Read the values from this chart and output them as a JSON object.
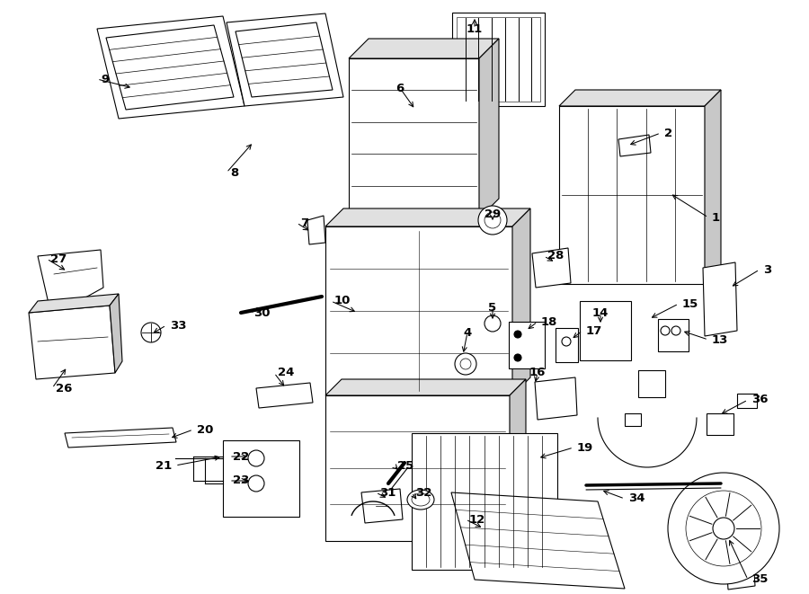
{
  "bg_color": "#ffffff",
  "lw": 0.8,
  "labels": [
    [
      "1",
      788,
      242,
      745,
      215,
      "left"
    ],
    [
      "2",
      735,
      148,
      698,
      162,
      "left"
    ],
    [
      "3",
      845,
      300,
      812,
      320,
      "left"
    ],
    [
      "4",
      520,
      370,
      515,
      395,
      "center"
    ],
    [
      "5",
      548,
      342,
      548,
      358,
      "center"
    ],
    [
      "6",
      445,
      98,
      462,
      122,
      "center"
    ],
    [
      "7",
      330,
      248,
      346,
      258,
      "left"
    ],
    [
      "8",
      252,
      192,
      282,
      158,
      "left"
    ],
    [
      "9",
      108,
      88,
      148,
      98,
      "left"
    ],
    [
      "10",
      368,
      335,
      398,
      348,
      "left"
    ],
    [
      "11",
      528,
      32,
      528,
      18,
      "center"
    ],
    [
      "12",
      518,
      578,
      538,
      588,
      "left"
    ],
    [
      "13",
      788,
      378,
      758,
      368,
      "left"
    ],
    [
      "14",
      668,
      348,
      668,
      362,
      "center"
    ],
    [
      "15",
      755,
      338,
      722,
      355,
      "left"
    ],
    [
      "16",
      598,
      415,
      595,
      428,
      "center"
    ],
    [
      "17",
      648,
      368,
      635,
      378,
      "left"
    ],
    [
      "18",
      598,
      358,
      585,
      368,
      "left"
    ],
    [
      "19",
      638,
      498,
      598,
      510,
      "left"
    ],
    [
      "20",
      215,
      478,
      188,
      488,
      "left"
    ],
    [
      "21",
      195,
      518,
      248,
      508,
      "right"
    ],
    [
      "22",
      255,
      508,
      278,
      508,
      "left"
    ],
    [
      "23",
      255,
      535,
      278,
      535,
      "left"
    ],
    [
      "24",
      305,
      415,
      318,
      432,
      "left"
    ],
    [
      "25",
      438,
      518,
      445,
      525,
      "left"
    ],
    [
      "26",
      58,
      432,
      75,
      408,
      "left"
    ],
    [
      "27",
      52,
      288,
      75,
      302,
      "left"
    ],
    [
      "28",
      605,
      285,
      618,
      292,
      "left"
    ],
    [
      "29",
      548,
      238,
      548,
      248,
      "center"
    ],
    [
      "30",
      278,
      348,
      295,
      342,
      "left"
    ],
    [
      "31",
      418,
      548,
      432,
      555,
      "left"
    ],
    [
      "32",
      458,
      548,
      465,
      558,
      "left"
    ],
    [
      "33",
      185,
      362,
      168,
      372,
      "left"
    ],
    [
      "34",
      695,
      555,
      668,
      545,
      "left"
    ],
    [
      "35",
      832,
      645,
      810,
      598,
      "left"
    ],
    [
      "36",
      832,
      445,
      800,
      462,
      "left"
    ]
  ]
}
